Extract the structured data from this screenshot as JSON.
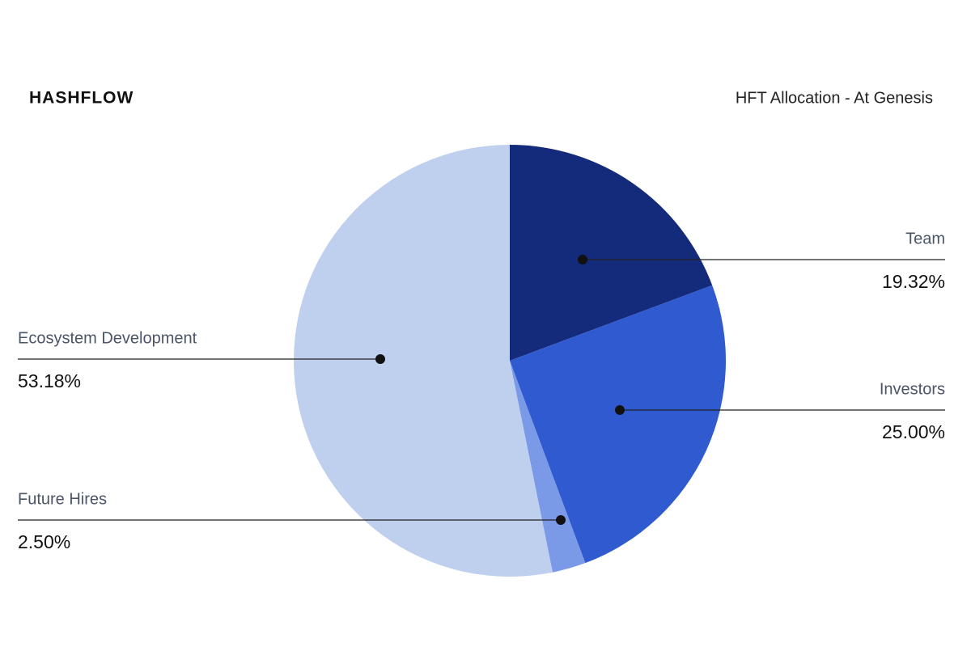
{
  "logo": "HASHFLOW",
  "chart_data": {
    "type": "pie",
    "title": "HFT Allocation - At Genesis",
    "categories": [
      "Team",
      "Investors",
      "Future Hires",
      "Ecosystem Development"
    ],
    "values": [
      19.32,
      25.0,
      2.5,
      53.18
    ],
    "value_labels": [
      "19.32%",
      "25.00%",
      "2.50%",
      "53.18%"
    ],
    "colors": [
      "#142a7a",
      "#2f5ad0",
      "#7a9ae8",
      "#bfcfee"
    ]
  }
}
